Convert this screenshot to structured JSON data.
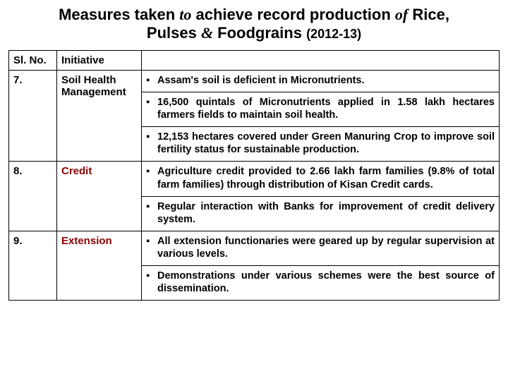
{
  "title": {
    "part1": "Measures taken ",
    "italic1": "to",
    "part2": " achieve record production ",
    "italic2": "of",
    "part3": " Rice,",
    "line2a": "Pulses ",
    "amp": "&",
    "line2b": " Foodgrains ",
    "year": "(2012-13)"
  },
  "headers": {
    "slno": "Sl. No.",
    "initiative": "Initiative",
    "desc": ""
  },
  "rows": [
    {
      "slno": "7.",
      "initiative": "Soil Health Management",
      "accent": false,
      "bullets": [
        "Assam's soil is deficient in Micronutrients.",
        "16,500 quintals of Micronutrients applied in 1.58 lakh hectares farmers fields to maintain soil health.",
        "12,153 hectares covered under Green Manuring Crop to improve  soil fertility status for sustainable production."
      ]
    },
    {
      "slno": "8.",
      "initiative": "Credit",
      "accent": true,
      "bullets": [
        "Agriculture credit provided to 2.66 lakh farm families (9.8% of total farm families) through distribution of Kisan Credit cards.",
        "Regular interaction with Banks for improvement of credit delivery system."
      ]
    },
    {
      "slno": "9.",
      "initiative": "Extension",
      "accent": true,
      "bullets": [
        "All extension functionaries were geared up by regular supervision at various levels.",
        "Demonstrations under various schemes were the best source of dissemination."
      ]
    }
  ],
  "bullet_marker": "▪"
}
